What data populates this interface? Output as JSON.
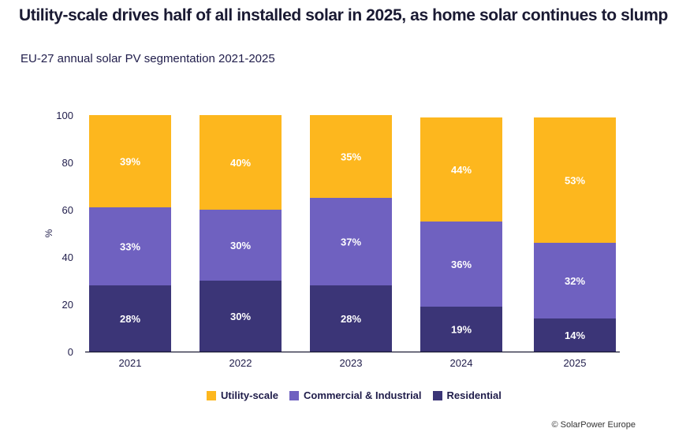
{
  "title": "Utility-scale drives half of all installed solar in 2025, as home solar continues to slump",
  "subtitle": "EU-27 annual solar PV segmentation 2021-2025",
  "credit": "© SolarPower Europe",
  "chart_data": {
    "type": "bar",
    "stacked": true,
    "title": "EU-27 annual solar PV segmentation 2021-2025",
    "xlabel": "",
    "ylabel": "%",
    "ylim": [
      0,
      100
    ],
    "yticks": [
      0,
      20,
      40,
      60,
      80,
      100
    ],
    "categories": [
      "2021",
      "2022",
      "2023",
      "2024",
      "2025"
    ],
    "series": [
      {
        "name": "Residential",
        "color": "#3b3577",
        "values": [
          28,
          30,
          28,
          19,
          14
        ]
      },
      {
        "name": "Commercial & Industrial",
        "color": "#6f61c0",
        "values": [
          33,
          30,
          37,
          36,
          32
        ]
      },
      {
        "name": "Utility-scale",
        "color": "#fdb71e",
        "values": [
          39,
          40,
          35,
          44,
          53
        ]
      }
    ],
    "legend_order": [
      "Utility-scale",
      "Commercial & Industrial",
      "Residential"
    ],
    "legend_position": "bottom-center",
    "grid": false
  }
}
